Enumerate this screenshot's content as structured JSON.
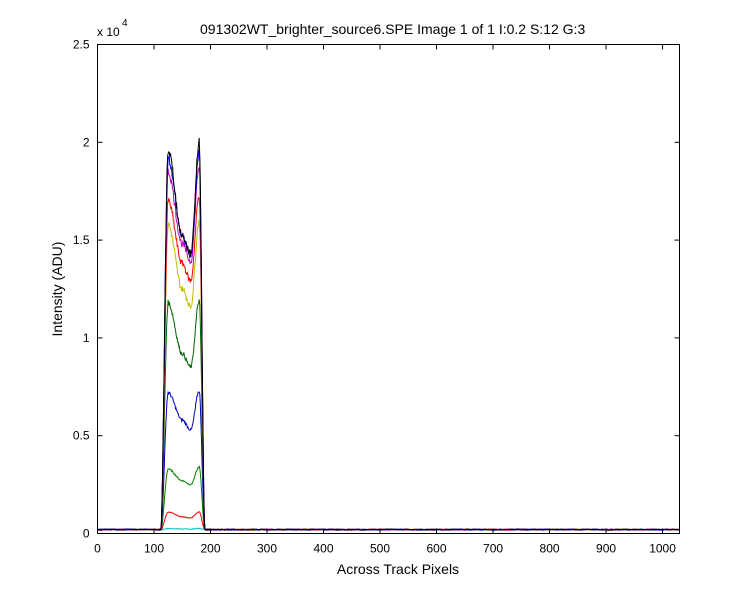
{
  "chart_data": {
    "type": "line",
    "title": "091302WT_brighter_source6.SPE  Image 1 of 1  I:0.2  S:12  G:3",
    "xlabel": "Across Track Pixels",
    "ylabel": "Intensity (ADU)",
    "xlim": [
      0,
      1030
    ],
    "ylim": [
      0,
      25000
    ],
    "y_exponent_label": "x 10",
    "y_exponent_power": "4",
    "x_ticks": [
      0,
      100,
      200,
      300,
      400,
      500,
      600,
      700,
      800,
      900,
      1000
    ],
    "x_tick_labels": [
      "0",
      "100",
      "200",
      "300",
      "400",
      "500",
      "600",
      "700",
      "800",
      "900",
      "1000"
    ],
    "y_ticks": [
      0,
      5000,
      10000,
      15000,
      20000,
      25000
    ],
    "y_tick_labels": [
      "0",
      "0.5",
      "1",
      "1.5",
      "2",
      "2.5"
    ],
    "grid": false,
    "legend": "none",
    "baseline": 200,
    "left_edge": 112,
    "right_edge": 190,
    "series": [
      {
        "color": "#00bfbf",
        "x": [
          112,
          125,
          150,
          165,
          180,
          190
        ],
        "y": [
          200,
          250,
          230,
          220,
          260,
          200
        ]
      },
      {
        "color": "#ff0000",
        "x": [
          112,
          125,
          150,
          165,
          180,
          190
        ],
        "y": [
          200,
          1100,
          850,
          800,
          1100,
          200
        ]
      },
      {
        "color": "#008000",
        "x": [
          112,
          125,
          150,
          165,
          180,
          190
        ],
        "y": [
          200,
          3300,
          2700,
          2500,
          3400,
          200
        ]
      },
      {
        "color": "#0000bf",
        "x": [
          112,
          125,
          150,
          165,
          180,
          190
        ],
        "y": [
          200,
          7200,
          5800,
          5300,
          7300,
          200
        ]
      },
      {
        "color": "#006400",
        "x": [
          112,
          125,
          150,
          165,
          180,
          190
        ],
        "y": [
          200,
          11800,
          9200,
          8500,
          11900,
          200
        ]
      },
      {
        "color": "#bfbf00",
        "x": [
          112,
          125,
          150,
          165,
          180,
          190
        ],
        "y": [
          200,
          15800,
          12500,
          11600,
          16000,
          200
        ]
      },
      {
        "color": "#ff0000",
        "x": [
          112,
          125,
          150,
          165,
          180,
          190
        ],
        "y": [
          200,
          17000,
          13800,
          12900,
          17300,
          200
        ]
      },
      {
        "color": "#bf00bf",
        "x": [
          112,
          125,
          150,
          165,
          180,
          190
        ],
        "y": [
          200,
          18500,
          14800,
          13900,
          18800,
          200
        ]
      },
      {
        "color": "#0000ff",
        "x": [
          112,
          125,
          150,
          165,
          180,
          190
        ],
        "y": [
          200,
          19200,
          15200,
          14200,
          19500,
          200
        ]
      },
      {
        "color": "#000000",
        "x": [
          112,
          125,
          150,
          165,
          180,
          190
        ],
        "y": [
          200,
          19600,
          15200,
          14300,
          20000,
          200
        ]
      }
    ]
  }
}
